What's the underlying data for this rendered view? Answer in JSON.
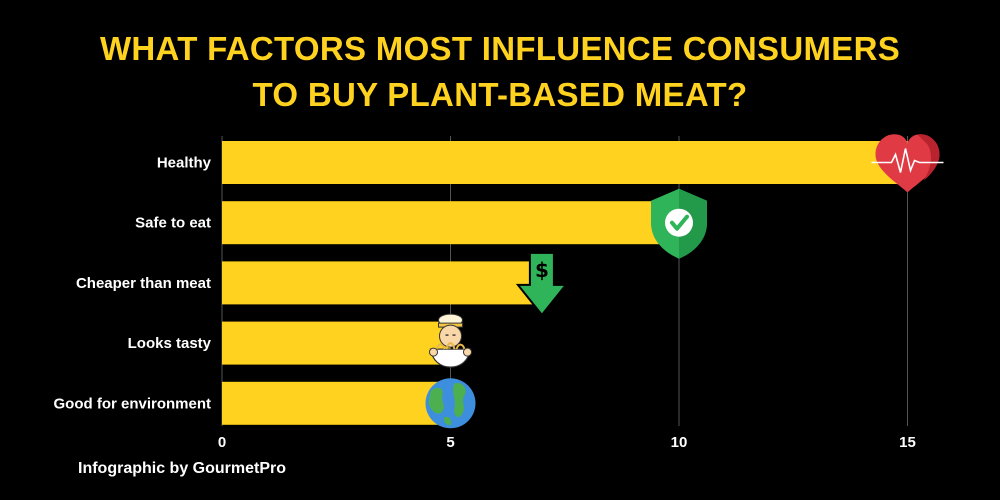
{
  "title": {
    "line1": "WHAT FACTORS MOST INFLUENCE CONSUMERS",
    "line2": "TO BUY PLANT-BASED MEAT?"
  },
  "footer": "Infographic by GourmetPro",
  "colors": {
    "background": "#000000",
    "bar": "#FFD21F",
    "title": "#FFD21F",
    "grid": "#555555",
    "text": "#FFFFFF"
  },
  "chart_data": {
    "type": "bar",
    "orientation": "horizontal",
    "categories": [
      "Healthy",
      "Safe to eat",
      "Cheaper than meat",
      "Looks tasty",
      "Good for environment"
    ],
    "values": [
      15,
      10,
      7,
      5,
      5
    ],
    "icons": [
      "heart-icon",
      "shield-check-icon",
      "dollar-down-arrow-icon",
      "noodle-chef-icon",
      "globe-icon"
    ],
    "xticks": [
      0,
      5,
      10,
      15
    ],
    "xlim": [
      0,
      16
    ],
    "grid": true,
    "xlabel": "",
    "ylabel": ""
  }
}
